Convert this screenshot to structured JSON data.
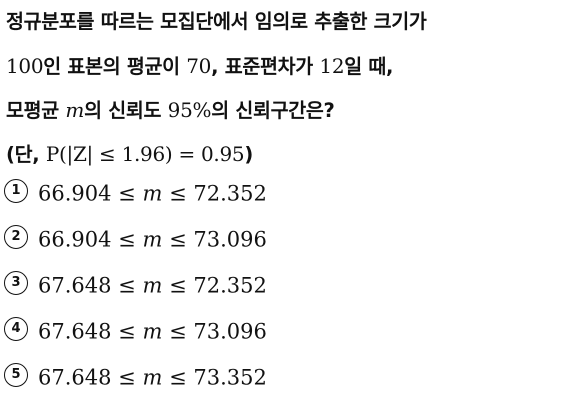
{
  "question": {
    "line1": "정규분포를 따르는 모집단에서 임의로 추출한 크기가",
    "line2": {
      "n": "100",
      "t1": "인 표본의 평균이 ",
      "mean": "70",
      "t2": ", 표준편차가 ",
      "sd": "12",
      "t3": "일 때,"
    },
    "line3": {
      "t1": "모평균 ",
      "var": "m",
      "t2": "의 신뢰도 ",
      "conf": "95%",
      "t3": "의 신뢰구간은?"
    },
    "line4": {
      "t1": "(단, ",
      "cond": "P(|Z| ≤ 1.96) = 0.95",
      "t2": ")"
    }
  },
  "choices": [
    {
      "num": "1",
      "low": "66.904",
      "rel": "≤",
      "var": "m",
      "high": "72.352"
    },
    {
      "num": "2",
      "low": "66.904",
      "rel": "≤",
      "var": "m",
      "high": "73.096"
    },
    {
      "num": "3",
      "low": "67.648",
      "rel": "≤",
      "var": "m",
      "high": "72.352"
    },
    {
      "num": "4",
      "low": "67.648",
      "rel": "≤",
      "var": "m",
      "high": "73.096"
    },
    {
      "num": "5",
      "low": "67.648",
      "rel": "≤",
      "var": "m",
      "high": "73.352"
    }
  ]
}
